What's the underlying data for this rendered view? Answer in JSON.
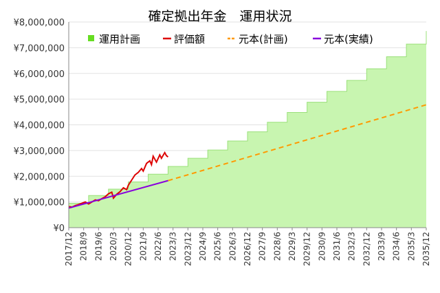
{
  "chart_data": {
    "type": "area",
    "title": "確定拠出年金　運用状況",
    "xlabel": "",
    "ylabel": "",
    "ylim": [
      0,
      8000000
    ],
    "yticks": [
      "¥0",
      "¥1,000,000",
      "¥2,000,000",
      "¥3,000,000",
      "¥4,000,000",
      "¥5,000,000",
      "¥6,000,000",
      "¥7,000,000",
      "¥8,000,000"
    ],
    "xticks": [
      "2017/12",
      "2018/9",
      "2019/6",
      "2020/3",
      "2020/12",
      "2021/9",
      "2022/6",
      "2023/3",
      "2023/12",
      "2024/9",
      "2025/6",
      "2026/3",
      "2026/12",
      "2027/9",
      "2028/6",
      "2029/3",
      "2029/12",
      "2030/9",
      "2031/6",
      "2032/3",
      "2032/12",
      "2033/9",
      "2034/6",
      "2035/3",
      "2035/12"
    ],
    "grid": true,
    "legend_position": "top",
    "series": [
      {
        "name": "運用計画",
        "kind": "step-area",
        "color": "#66dd22",
        "fill": "#c8f5b0",
        "steps": [
          [
            "2017/12",
            950000
          ],
          [
            "2018/12",
            1250000
          ],
          [
            "2019/12",
            1500000
          ],
          [
            "2020/12",
            1780000
          ],
          [
            "2021/12",
            2080000
          ],
          [
            "2022/12",
            2380000
          ],
          [
            "2023/12",
            2700000
          ],
          [
            "2024/12",
            3020000
          ],
          [
            "2025/12",
            3370000
          ],
          [
            "2026/12",
            3730000
          ],
          [
            "2027/12",
            4100000
          ],
          [
            "2028/12",
            4480000
          ],
          [
            "2029/12",
            4880000
          ],
          [
            "2030/12",
            5300000
          ],
          [
            "2031/12",
            5730000
          ],
          [
            "2032/12",
            6180000
          ],
          [
            "2033/12",
            6650000
          ],
          [
            "2034/12",
            7140000
          ],
          [
            "2035/12",
            7650000
          ]
        ]
      },
      {
        "name": "評価額",
        "kind": "line",
        "color": "#dd0000",
        "points": [
          [
            "2017/12",
            820000
          ],
          [
            "2018/2",
            800000
          ],
          [
            "2018/4",
            860000
          ],
          [
            "2018/6",
            900000
          ],
          [
            "2018/8",
            950000
          ],
          [
            "2018/10",
            1000000
          ],
          [
            "2018/12",
            920000
          ],
          [
            "2019/2",
            1000000
          ],
          [
            "2019/4",
            1080000
          ],
          [
            "2019/6",
            1050000
          ],
          [
            "2019/8",
            1130000
          ],
          [
            "2019/10",
            1200000
          ],
          [
            "2019/12",
            1320000
          ],
          [
            "2020/2",
            1380000
          ],
          [
            "2020/3",
            1150000
          ],
          [
            "2020/5",
            1300000
          ],
          [
            "2020/7",
            1400000
          ],
          [
            "2020/9",
            1550000
          ],
          [
            "2020/11",
            1480000
          ],
          [
            "2020/12",
            1650000
          ],
          [
            "2021/2",
            1850000
          ],
          [
            "2021/4",
            2050000
          ],
          [
            "2021/6",
            2150000
          ],
          [
            "2021/8",
            2300000
          ],
          [
            "2021/9",
            2200000
          ],
          [
            "2021/11",
            2500000
          ],
          [
            "2022/1",
            2600000
          ],
          [
            "2022/2",
            2450000
          ],
          [
            "2022/3",
            2780000
          ],
          [
            "2022/5",
            2550000
          ],
          [
            "2022/7",
            2830000
          ],
          [
            "2022/8",
            2700000
          ],
          [
            "2022/10",
            2920000
          ],
          [
            "2022/11",
            2800000
          ],
          [
            "2022/12",
            2750000
          ]
        ]
      },
      {
        "name": "元本(計画)",
        "kind": "dashed-line",
        "color": "#ff9900",
        "points": [
          [
            "2022/12",
            1830000
          ],
          [
            "2035/12",
            4780000
          ]
        ]
      },
      {
        "name": "元本(実績)",
        "kind": "line",
        "color": "#8800dd",
        "points": [
          [
            "2017/12",
            760000
          ],
          [
            "2022/12",
            1830000
          ]
        ]
      }
    ]
  }
}
